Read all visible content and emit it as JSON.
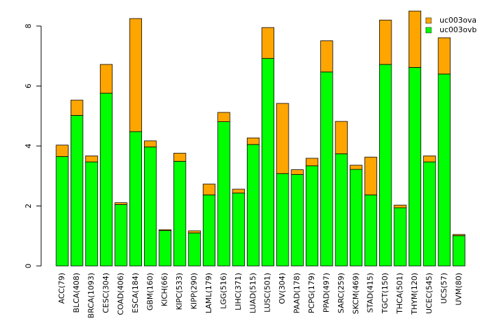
{
  "chart_data": {
    "type": "bar",
    "stacked": true,
    "title": "",
    "xlabel": "",
    "ylabel": "",
    "ylim": [
      0,
      8.6
    ],
    "yticks": [
      0,
      2,
      4,
      6,
      8
    ],
    "legend": {
      "placement": "top-right"
    },
    "categories": [
      "ACC(79)",
      "BLCA(408)",
      "BRCA(1093)",
      "CESC(304)",
      "COAD(406)",
      "ESCA(184)",
      "GBM(160)",
      "KICH(66)",
      "KIPC(533)",
      "KIPP(290)",
      "LAML(179)",
      "LGG(516)",
      "LIHC(371)",
      "LUAD(515)",
      "LUSC(501)",
      "OV(304)",
      "PAAD(178)",
      "PCPG(179)",
      "PPAD(497)",
      "SARC(259)",
      "SKCM(469)",
      "STAD(415)",
      "TGCT(150)",
      "THCA(501)",
      "THYM(120)",
      "UCEC(545)",
      "UCS(57)",
      "UVM(80)"
    ],
    "series": [
      {
        "name": "uc003ovb",
        "color": "#00ff00",
        "values": [
          3.65,
          5.02,
          3.47,
          5.76,
          2.05,
          4.48,
          3.97,
          1.18,
          3.49,
          1.1,
          2.37,
          4.81,
          2.43,
          4.05,
          6.92,
          3.08,
          3.05,
          3.34,
          6.47,
          3.74,
          3.22,
          2.37,
          6.72,
          1.94,
          6.62,
          3.47,
          6.4,
          1.01
        ]
      },
      {
        "name": "uc003ova",
        "color": "#ffa500",
        "values": [
          0.38,
          0.51,
          0.2,
          0.96,
          0.06,
          3.77,
          0.2,
          0.03,
          0.27,
          0.07,
          0.36,
          0.31,
          0.13,
          0.22,
          1.03,
          2.34,
          0.16,
          0.25,
          1.04,
          1.08,
          0.14,
          1.26,
          1.48,
          0.09,
          1.88,
          0.2,
          1.21,
          0.04
        ]
      }
    ]
  }
}
